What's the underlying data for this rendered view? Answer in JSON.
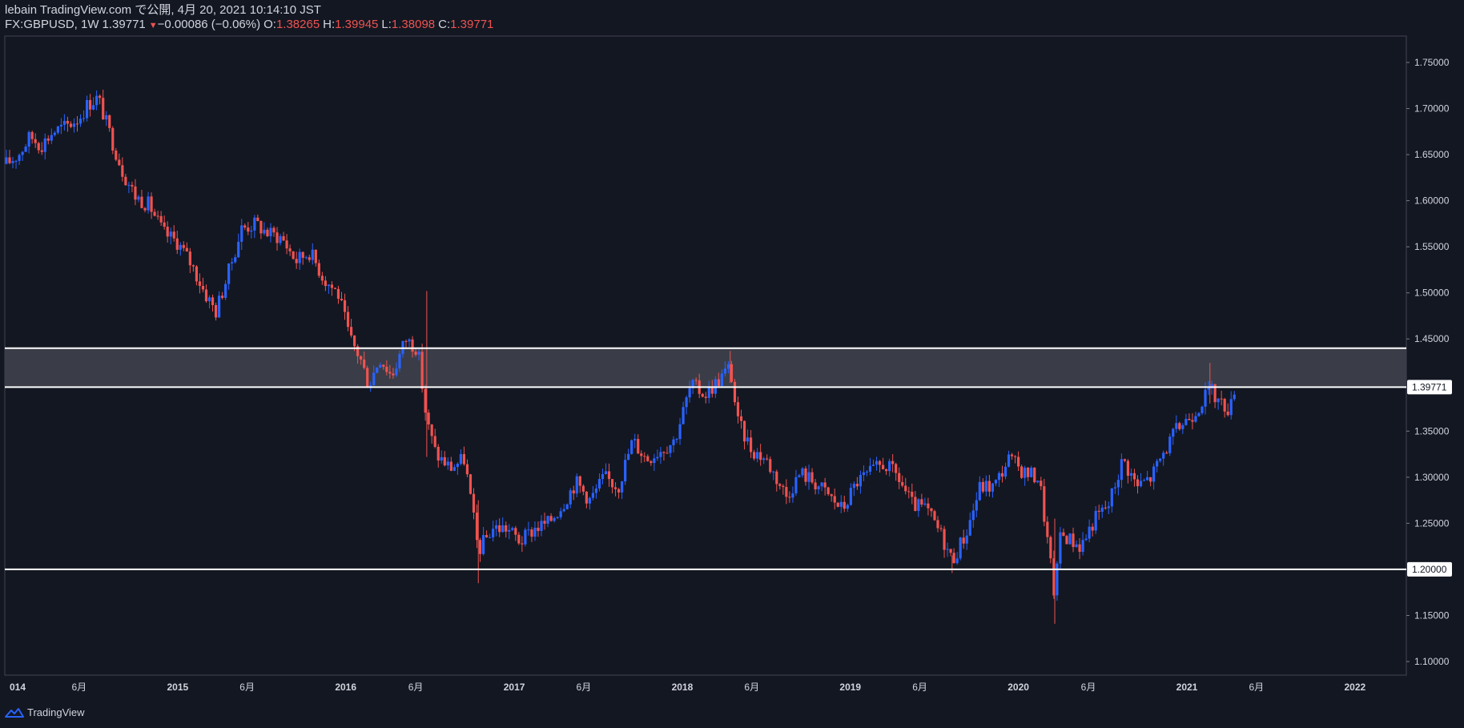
{
  "header": {
    "line1": "lebain TradingView.com で公開, 4月 20, 2021 10:14:10 JST",
    "symbol": "FX:GBPUSD, 1W",
    "last": "1.39771",
    "change_arrow": "▼",
    "change": "−0.00086 (−0.06%)",
    "o_label": "O:",
    "o_val": "1.38265",
    "h_label": "H:",
    "h_val": "1.39945",
    "l_label": "L:",
    "l_val": "1.38098",
    "c_label": "C:",
    "c_val": "1.39771"
  },
  "footer": {
    "brand": "TradingView",
    "logo_icon": "tradingview-logo-icon"
  },
  "colors": {
    "up": "#2962ff",
    "down": "#ef5350",
    "background": "#131722",
    "zone": "#3a3d47",
    "line": "#ffffff"
  },
  "chart_data": {
    "type": "candlestick",
    "title": "",
    "xlabel": "",
    "ylabel": "",
    "ylim": [
      1.08,
      1.79
    ],
    "xlim": [
      "2014-01-01",
      "2022-06-01"
    ],
    "y_ticks": [
      "1.75000",
      "1.70000",
      "1.65000",
      "1.60000",
      "1.55000",
      "1.50000",
      "1.45000",
      "1.35000",
      "1.30000",
      "1.25000",
      "1.15000",
      "1.10000"
    ],
    "x_ticks": [
      {
        "date": "2014-01-01",
        "label": "014"
      },
      {
        "date": "2014-06-01",
        "label": "6月"
      },
      {
        "date": "2015-01-01",
        "label": "2015"
      },
      {
        "date": "2015-06-01",
        "label": "6月"
      },
      {
        "date": "2016-01-01",
        "label": "2016"
      },
      {
        "date": "2016-06-01",
        "label": "6月"
      },
      {
        "date": "2017-01-01",
        "label": "2017"
      },
      {
        "date": "2017-06-01",
        "label": "6月"
      },
      {
        "date": "2018-01-01",
        "label": "2018"
      },
      {
        "date": "2018-06-01",
        "label": "6月"
      },
      {
        "date": "2019-01-01",
        "label": "2019"
      },
      {
        "date": "2019-06-01",
        "label": "6月"
      },
      {
        "date": "2020-01-01",
        "label": "2020"
      },
      {
        "date": "2020-06-01",
        "label": "6月"
      },
      {
        "date": "2021-01-01",
        "label": "2021"
      },
      {
        "date": "2021-06-01",
        "label": "6月"
      },
      {
        "date": "2022-01-01",
        "label": "2022"
      }
    ],
    "price_labels": [
      {
        "value": 1.39771,
        "label": "1.39771"
      },
      {
        "value": 1.2,
        "label": "1.20000"
      }
    ],
    "zone": {
      "from": 1.39771,
      "to": 1.44
    },
    "hlines": [
      1.44,
      1.39771,
      1.2
    ],
    "close_path": [
      [
        "2013-12-25",
        1.64
      ],
      [
        "2014-01-20",
        1.65
      ],
      [
        "2014-02-15",
        1.67
      ],
      [
        "2014-03-10",
        1.66
      ],
      [
        "2014-04-05",
        1.675
      ],
      [
        "2014-05-01",
        1.68
      ],
      [
        "2014-06-01",
        1.69
      ],
      [
        "2014-06-20",
        1.705
      ],
      [
        "2014-07-12",
        1.712
      ],
      [
        "2014-08-05",
        1.675
      ],
      [
        "2014-09-05",
        1.63
      ],
      [
        "2014-10-01",
        1.605
      ],
      [
        "2014-11-01",
        1.595
      ],
      [
        "2014-12-01",
        1.565
      ],
      [
        "2015-01-01",
        1.555
      ],
      [
        "2015-02-01",
        1.53
      ],
      [
        "2015-03-01",
        1.5
      ],
      [
        "2015-03-25",
        1.48
      ],
      [
        "2015-04-20",
        1.52
      ],
      [
        "2015-05-20",
        1.57
      ],
      [
        "2015-06-20",
        1.575
      ],
      [
        "2015-07-15",
        1.565
      ],
      [
        "2015-08-15",
        1.56
      ],
      [
        "2015-09-15",
        1.535
      ],
      [
        "2015-10-15",
        1.545
      ],
      [
        "2015-11-15",
        1.515
      ],
      [
        "2015-12-15",
        1.5
      ],
      [
        "2016-01-10",
        1.45
      ],
      [
        "2016-02-01",
        1.43
      ],
      [
        "2016-02-20",
        1.4
      ],
      [
        "2016-03-15",
        1.43
      ],
      [
        "2016-04-10",
        1.41
      ],
      [
        "2016-05-10",
        1.45
      ],
      [
        "2016-06-05",
        1.44
      ],
      [
        "2016-06-25",
        1.36
      ],
      [
        "2016-07-15",
        1.325
      ],
      [
        "2016-08-15",
        1.31
      ],
      [
        "2016-09-15",
        1.32
      ],
      [
        "2016-10-15",
        1.22
      ],
      [
        "2016-11-15",
        1.245
      ],
      [
        "2016-12-15",
        1.245
      ],
      [
        "2017-01-15",
        1.23
      ],
      [
        "2017-02-15",
        1.245
      ],
      [
        "2017-03-15",
        1.25
      ],
      [
        "2017-04-15",
        1.27
      ],
      [
        "2017-05-15",
        1.295
      ],
      [
        "2017-06-15",
        1.275
      ],
      [
        "2017-07-15",
        1.3
      ],
      [
        "2017-08-15",
        1.29
      ],
      [
        "2017-09-15",
        1.34
      ],
      [
        "2017-10-15",
        1.32
      ],
      [
        "2017-11-15",
        1.33
      ],
      [
        "2017-12-15",
        1.34
      ],
      [
        "2018-01-20",
        1.4
      ],
      [
        "2018-02-20",
        1.39
      ],
      [
        "2018-03-20",
        1.405
      ],
      [
        "2018-04-15",
        1.42
      ],
      [
        "2018-05-01",
        1.36
      ],
      [
        "2018-06-01",
        1.33
      ],
      [
        "2018-07-01",
        1.32
      ],
      [
        "2018-08-15",
        1.28
      ],
      [
        "2018-09-15",
        1.305
      ],
      [
        "2018-10-15",
        1.295
      ],
      [
        "2018-11-15",
        1.28
      ],
      [
        "2018-12-15",
        1.265
      ],
      [
        "2019-01-15",
        1.295
      ],
      [
        "2019-02-15",
        1.305
      ],
      [
        "2019-03-15",
        1.315
      ],
      [
        "2019-04-15",
        1.3
      ],
      [
        "2019-05-15",
        1.27
      ],
      [
        "2019-06-15",
        1.265
      ],
      [
        "2019-07-15",
        1.24
      ],
      [
        "2019-08-10",
        1.21
      ],
      [
        "2019-09-10",
        1.24
      ],
      [
        "2019-10-10",
        1.29
      ],
      [
        "2019-11-10",
        1.29
      ],
      [
        "2019-12-10",
        1.32
      ],
      [
        "2020-01-15",
        1.305
      ],
      [
        "2020-02-15",
        1.3
      ],
      [
        "2020-03-20",
        1.17
      ],
      [
        "2020-04-01",
        1.24
      ],
      [
        "2020-05-15",
        1.225
      ],
      [
        "2020-06-15",
        1.255
      ],
      [
        "2020-07-15",
        1.27
      ],
      [
        "2020-08-15",
        1.32
      ],
      [
        "2020-09-15",
        1.29
      ],
      [
        "2020-10-15",
        1.3
      ],
      [
        "2020-11-15",
        1.33
      ],
      [
        "2020-12-15",
        1.355
      ],
      [
        "2021-01-15",
        1.37
      ],
      [
        "2021-02-20",
        1.395
      ],
      [
        "2021-03-15",
        1.38
      ],
      [
        "2021-04-05",
        1.375
      ],
      [
        "2021-04-19",
        1.3977
      ]
    ],
    "extra_wicks": [
      [
        "2016-06-25",
        1.502,
        1.322
      ],
      [
        "2016-10-15",
        1.275,
        1.185
      ],
      [
        "2018-04-15",
        1.437,
        1.402
      ],
      [
        "2019-08-10",
        1.215,
        1.196
      ],
      [
        "2020-03-20",
        1.255,
        1.141
      ],
      [
        "2021-02-20",
        1.424,
        1.38
      ]
    ]
  }
}
